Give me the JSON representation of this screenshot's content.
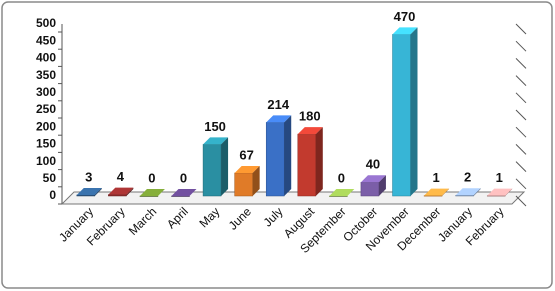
{
  "chart_data": {
    "type": "bar3d",
    "categories": [
      "January",
      "February",
      "March",
      "April",
      "May",
      "June",
      "July",
      "August",
      "September",
      "October",
      "November",
      "December",
      "January",
      "February"
    ],
    "values": [
      3,
      4,
      0,
      0,
      150,
      67,
      214,
      180,
      0,
      40,
      470,
      1,
      2,
      1
    ],
    "colors": [
      "#2f5d8c",
      "#8c2b2b",
      "#6b8c2f",
      "#5b4080",
      "#2a8fa2",
      "#e07b28",
      "#3a70c6",
      "#c23a2e",
      "#8db04a",
      "#7b5ea8",
      "#37b5d6",
      "#f0953a",
      "#8ea9d2",
      "#d49a9a"
    ],
    "ylim": [
      0,
      500
    ],
    "yticks": [
      0,
      50,
      100,
      150,
      200,
      250,
      300,
      350,
      400,
      450,
      500
    ],
    "grid": false
  }
}
